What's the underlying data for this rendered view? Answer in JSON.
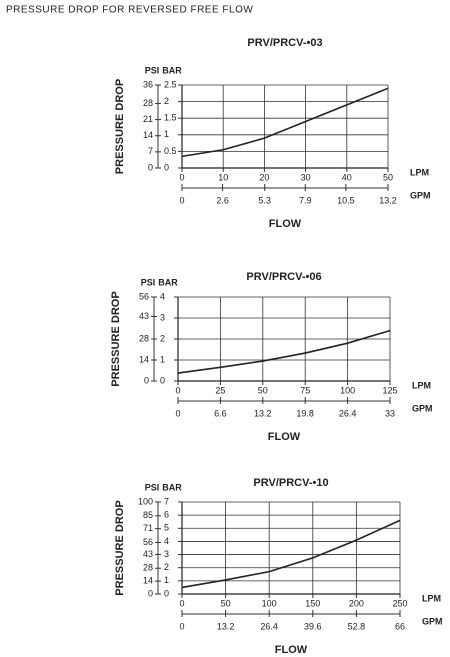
{
  "title": "PRESSURE DROP FOR REVERSED FREE FLOW",
  "chart_data": [
    {
      "type": "line",
      "title": "PRV/PRCV-•03",
      "x_label": "FLOW",
      "y_label": "PRESSURE DROP",
      "x_unit": "LPM",
      "x2_unit": "GPM",
      "y_unit": "BAR",
      "y2_unit": "PSI",
      "x": [
        0,
        10,
        20,
        30,
        40,
        50
      ],
      "series": [
        {
          "color": "#222222",
          "values": [
            0.35,
            0.55,
            0.9,
            1.4,
            1.9,
            2.4
          ]
        }
      ],
      "xlim": [
        0,
        50
      ],
      "xticks": [
        0,
        10,
        20,
        30,
        40,
        50
      ],
      "x2lim": [
        0,
        13.2
      ],
      "x2ticks": [
        0,
        2.6,
        5.3,
        7.9,
        10.5,
        13.2
      ],
      "ylim": [
        0,
        2.5
      ],
      "yticks": [
        0,
        0.5,
        1,
        1.5,
        2,
        2.5
      ],
      "y2lim": [
        0,
        36
      ],
      "y2ticks": [
        0,
        7,
        14,
        21,
        28,
        36
      ],
      "grid": true
    },
    {
      "type": "line",
      "title": "PRV/PRCV-•06",
      "x_label": "FLOW",
      "y_label": "PRESSURE DROP",
      "x_unit": "LPM",
      "x2_unit": "GPM",
      "y_unit": "BAR",
      "y2_unit": "PSI",
      "x": [
        0,
        25,
        50,
        75,
        100,
        125
      ],
      "series": [
        {
          "color": "#222222",
          "values": [
            0.38,
            0.65,
            0.95,
            1.33,
            1.8,
            2.4
          ]
        }
      ],
      "xlim": [
        0,
        125
      ],
      "xticks": [
        0,
        25,
        50,
        75,
        100,
        125
      ],
      "x2lim": [
        0,
        33
      ],
      "x2ticks": [
        0,
        6.6,
        13.2,
        19.8,
        26.4,
        33
      ],
      "ylim": [
        0,
        4
      ],
      "yticks": [
        0,
        1,
        2,
        3,
        4
      ],
      "y2lim": [
        0,
        56
      ],
      "y2ticks": [
        0,
        14,
        28,
        43,
        56
      ],
      "grid": true
    },
    {
      "type": "line",
      "title": "PRV/PRCV-•10",
      "x_label": "FLOW",
      "y_label": "PRESSURE DROP",
      "x_unit": "LPM",
      "x2_unit": "GPM",
      "y_unit": "BAR",
      "y2_unit": "PSI",
      "x": [
        0,
        50,
        100,
        150,
        200,
        250
      ],
      "series": [
        {
          "color": "#222222",
          "values": [
            0.5,
            1.07,
            1.7,
            2.75,
            4.1,
            5.6
          ]
        }
      ],
      "xlim": [
        0,
        250
      ],
      "xticks": [
        0,
        50,
        100,
        150,
        200,
        250
      ],
      "x2lim": [
        0,
        66
      ],
      "x2ticks": [
        0,
        13.2,
        26.4,
        39.6,
        52.8,
        66
      ],
      "ylim": [
        0,
        7
      ],
      "yticks": [
        0,
        1,
        2,
        3,
        4,
        5,
        6,
        7
      ],
      "y2lim": [
        0,
        100
      ],
      "y2ticks": [
        0,
        14,
        28,
        43,
        56,
        71,
        85,
        100
      ],
      "grid": true
    }
  ]
}
